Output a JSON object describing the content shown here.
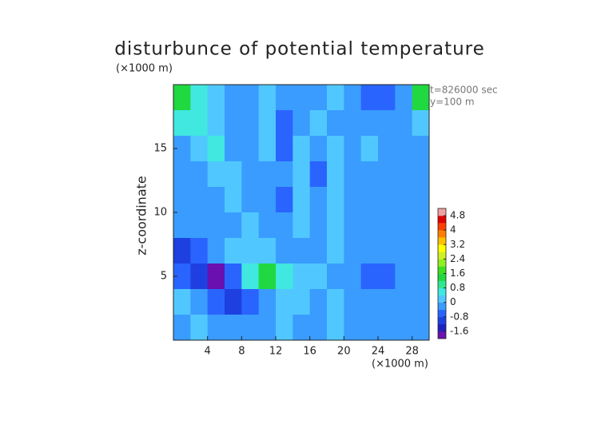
{
  "chart_data": {
    "type": "heatmap",
    "title": "disturbunce of potential temperature",
    "y_unit": "(×1000 m)",
    "x_unit": "(×1000 m)",
    "y_label": "z-coordinate",
    "annotations": [
      "t=826000 sec",
      "y=100 m"
    ],
    "xlim": [
      0,
      30
    ],
    "ylim": [
      0,
      20
    ],
    "xticks": [
      4,
      8,
      12,
      16,
      20,
      24,
      28
    ],
    "yticks": [
      5,
      10,
      15
    ],
    "x": [
      1,
      3,
      5,
      7,
      9,
      11,
      13,
      15,
      17,
      19,
      21,
      23,
      25,
      27,
      29
    ],
    "y": [
      19,
      17,
      15,
      13,
      11,
      9,
      7,
      5,
      3,
      1
    ],
    "values": [
      [
        1.2,
        0.8,
        0,
        -0.4,
        -0.2,
        0,
        -0.2,
        -0.4,
        -0.2,
        0,
        -0.4,
        -0.6,
        -0.6,
        -0.4,
        1.2
      ],
      [
        0.4,
        0.8,
        0.2,
        -0.4,
        -0.2,
        0,
        -0.6,
        -0.2,
        0,
        -0.2,
        -0.2,
        -0.4,
        -0.2,
        -0.2,
        0
      ],
      [
        -0.2,
        0,
        0.4,
        -0.2,
        -0.4,
        0,
        -0.6,
        0,
        -0.4,
        0,
        -0.2,
        0,
        -0.4,
        -0.2,
        -0.2
      ],
      [
        -0.2,
        -0.2,
        0,
        0.2,
        -0.4,
        -0.2,
        -0.4,
        0,
        -0.6,
        0,
        -0.2,
        -0.2,
        -0.4,
        -0.2,
        -0.2
      ],
      [
        -0.2,
        -0.2,
        -0.2,
        0,
        -0.2,
        -0.4,
        -0.6,
        0,
        -0.4,
        0.2,
        -0.4,
        -0.2,
        -0.2,
        -0.2,
        -0.4
      ],
      [
        -0.4,
        -0.2,
        -0.2,
        -0.2,
        0,
        -0.2,
        -0.2,
        0,
        -0.4,
        0,
        -0.2,
        -0.2,
        -0.4,
        -0.2,
        -0.2
      ],
      [
        -1.2,
        -0.6,
        -0.2,
        0,
        0.2,
        0.2,
        -0.2,
        -0.4,
        -0.2,
        0,
        -0.2,
        -0.4,
        -0.2,
        -0.2,
        -0.2
      ],
      [
        -0.8,
        -1.2,
        -1.6,
        -0.8,
        0.4,
        1.2,
        0.6,
        0.2,
        0,
        -0.2,
        -0.4,
        -0.6,
        -0.6,
        -0.4,
        -0.2
      ],
      [
        0,
        -0.2,
        -0.6,
        -1.2,
        -0.8,
        -0.2,
        0.2,
        0,
        -0.2,
        0,
        -0.4,
        -0.4,
        -0.4,
        -0.2,
        -0.2
      ],
      [
        -0.2,
        0,
        -0.2,
        -0.2,
        -0.4,
        -0.2,
        0,
        -0.2,
        -0.2,
        0.2,
        -0.2,
        -0.2,
        -0.2,
        -0.4,
        -0.2
      ]
    ],
    "colorbar_lim": [
      -2,
      5.2
    ],
    "colorbar_ticks": [
      -1.6,
      -0.8,
      0,
      0.8,
      1.6,
      2.4,
      3.2,
      4,
      4.8
    ],
    "colors": [
      "#6a10b0",
      "#2020c0",
      "#1e40e0",
      "#2a64ff",
      "#3a9cff",
      "#50c8ff",
      "#40e8e0",
      "#30e890",
      "#20d840",
      "#40e020",
      "#90f020",
      "#d0f020",
      "#ffff00",
      "#ffc000",
      "#ff8000",
      "#ff4000",
      "#e00000",
      "#f0a0a0"
    ]
  }
}
